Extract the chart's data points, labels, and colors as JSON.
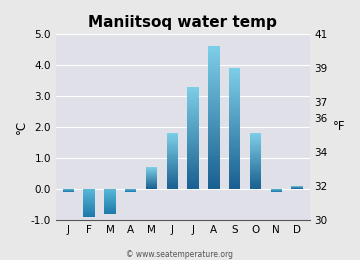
{
  "title": "Maniitsoq water temp",
  "months": [
    "J",
    "F",
    "M",
    "A",
    "M",
    "J",
    "J",
    "A",
    "S",
    "O",
    "N",
    "D"
  ],
  "values_c": [
    -0.1,
    -0.9,
    -0.8,
    -0.1,
    0.7,
    1.8,
    3.3,
    4.6,
    3.9,
    1.8,
    -0.1,
    0.1
  ],
  "ylabel_left": "°C",
  "ylabel_right": "°F",
  "ylim_c": [
    -1.0,
    5.0
  ],
  "yticks_c": [
    -1.0,
    0.0,
    1.0,
    2.0,
    3.0,
    4.0,
    5.0
  ],
  "ylim_f": [
    30,
    41
  ],
  "yticks_f_shown": [
    30,
    32,
    34,
    36,
    37,
    39,
    41
  ],
  "fig_background": "#e8e8e8",
  "plot_background": "#e0e0e8",
  "bar_top_light": "#7ecfe8",
  "bar_bottom_dark": "#1a6090",
  "bar_neg_top": "#5ab8d8",
  "bar_neg_bottom": "#1e7aaa",
  "watermark": "© www.seatemperature.org",
  "title_fontsize": 11,
  "tick_fontsize": 7.5,
  "label_fontsize": 8.5
}
